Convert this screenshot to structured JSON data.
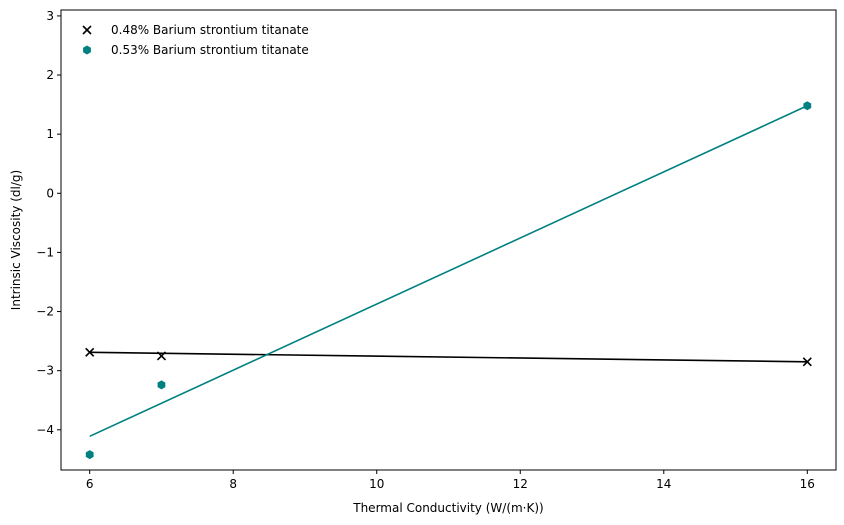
{
  "chart_data": {
    "type": "scatter",
    "title": "",
    "xlabel": "Thermal Conductivity (W/(m·K))",
    "ylabel": "Intrinsic Viscosity (dl/g)",
    "xlim": [
      5.6,
      16.4
    ],
    "ylim": [
      -4.68,
      3.1
    ],
    "x_ticks": [
      6,
      8,
      10,
      12,
      14,
      16
    ],
    "y_ticks": [
      -4,
      -3,
      -2,
      -1,
      0,
      1,
      2,
      3
    ],
    "grid": false,
    "legend_position": "top-left",
    "series": [
      {
        "name": "0.48% Barium strontium titanate",
        "marker": "x",
        "color": "#000000",
        "x": [
          6,
          7,
          16
        ],
        "y": [
          -2.69,
          -2.75,
          -2.85
        ],
        "fit_line": {
          "x": [
            6,
            16
          ],
          "y": [
            -2.69,
            -2.85
          ]
        }
      },
      {
        "name": "0.53% Barium strontium titanate",
        "marker": "hexagon",
        "color": "#008080",
        "x": [
          6,
          7,
          16
        ],
        "y": [
          -4.42,
          -3.24,
          1.48
        ],
        "fit_line": {
          "x": [
            6,
            16
          ],
          "y": [
            -4.11,
            1.48
          ]
        }
      }
    ]
  }
}
